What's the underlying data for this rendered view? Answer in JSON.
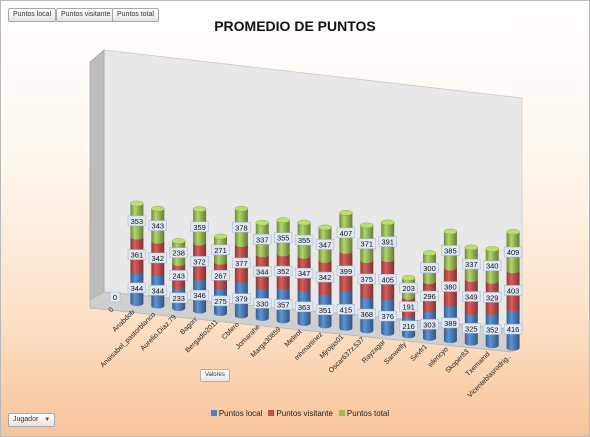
{
  "toolbar": {
    "buttons": [
      "Puntos local",
      "Puntos visitante",
      "Puntos total"
    ]
  },
  "values_button": "Valores",
  "filter_button": {
    "label": "Jugador",
    "arrow": "▼"
  },
  "colors": {
    "local": "#4f81bd",
    "visitante": "#c0504d",
    "total": "#9bbb59",
    "wall": "#e6e6e6",
    "floor": "#d2d2d2"
  },
  "chart_data": {
    "type": "bar",
    "stacked": true,
    "title": "PROMEDIO DE PUNTOS",
    "legend_position": "bottom",
    "categories": [
      "0",
      "Anabdob",
      "Anaisabel_pastorblanco",
      "Aurelio.Diaz.79",
      "Bagorr",
      "Bergadio2011",
      "Cbfero",
      "Jomarahe",
      "Marga30859",
      "Meleot",
      "mhmartinez",
      "Mjrojas01",
      "Oscar637z.537",
      "Rayzagar",
      "Sanwelly",
      "Sevfr1",
      "silencyo",
      "Skoper83",
      "Txemamd",
      "Vicenteblasrodrig.."
    ],
    "series": [
      {
        "name": "Puntos local",
        "values": [
          0,
          344,
          344,
          233,
          346,
          275,
          379,
          330,
          357,
          363,
          351,
          415,
          368,
          376,
          216,
          303,
          389,
          325,
          352,
          416
        ]
      },
      {
        "name": "Puntos visitante",
        "values": [
          0,
          361,
          342,
          243,
          372,
          267,
          377,
          344,
          352,
          347,
          342,
          399,
          375,
          405,
          191,
          296,
          380,
          349,
          329,
          403
        ]
      },
      {
        "name": "Puntos total",
        "values": [
          0,
          353,
          343,
          238,
          359,
          271,
          378,
          337,
          355,
          355,
          347,
          407,
          371,
          391,
          203,
          300,
          385,
          337,
          340,
          409
        ]
      }
    ]
  }
}
